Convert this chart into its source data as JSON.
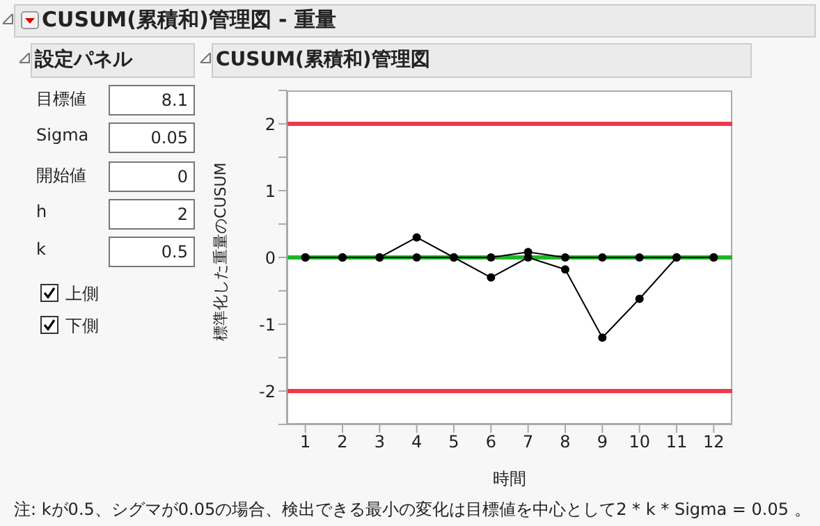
{
  "chart_data": {
    "type": "line",
    "title": "CUSUM(累積和)管理図 - 重量",
    "subtitle": "CUSUM(累積和)管理図",
    "xlabel": "時間",
    "ylabel": "標準化した重量のCUSUM",
    "x": [
      1,
      2,
      3,
      4,
      5,
      6,
      7,
      8,
      9,
      10,
      11,
      12
    ],
    "series": [
      {
        "color": "#000000",
        "values": [
          0,
          0,
          0,
          0.3,
          0,
          0,
          0.08,
          0,
          0,
          0,
          0,
          0
        ]
      },
      {
        "color": "#000000",
        "values": [
          0,
          0,
          0,
          0,
          0,
          -0.3,
          0,
          -0.18,
          -1.2,
          -0.62,
          0,
          0
        ]
      }
    ],
    "xlim": [
      0.5,
      12.5
    ],
    "xticks": [
      1,
      2,
      3,
      4,
      5,
      6,
      7,
      8,
      9,
      10,
      11,
      12
    ],
    "ylim": [
      -2.5,
      2.5
    ],
    "yticks": [
      {
        "value": -2.5,
        "label": null
      },
      -2,
      {
        "value": -1.5,
        "label": null
      },
      -1,
      {
        "value": -0.5,
        "label": null
      },
      0,
      {
        "value": 0.5,
        "label": null
      },
      1,
      {
        "value": 1.5,
        "label": null
      },
      2,
      {
        "value": 2.5,
        "label": null
      }
    ],
    "ref_lines": [
      {
        "axis": "y",
        "value": 2,
        "color": "#f0384b"
      },
      {
        "axis": "y",
        "value": -2,
        "color": "#f0384b"
      },
      {
        "axis": "y",
        "value": 0,
        "color": "#22b52a"
      }
    ],
    "marker": "circle",
    "line_style": "solid",
    "grid": false,
    "legend": false,
    "annotations": [
      "設定パネル",
      "目標値",
      "8.1",
      "Sigma",
      "0.05",
      "開始値",
      "0",
      "h",
      "2",
      "k",
      "0.5",
      "上側",
      "下側",
      "注: kが0.5、シグマが0.05の場合、検出できる最小の変化は目標値を中心として2 * k * Sigma = 0.05 。"
    ]
  }
}
